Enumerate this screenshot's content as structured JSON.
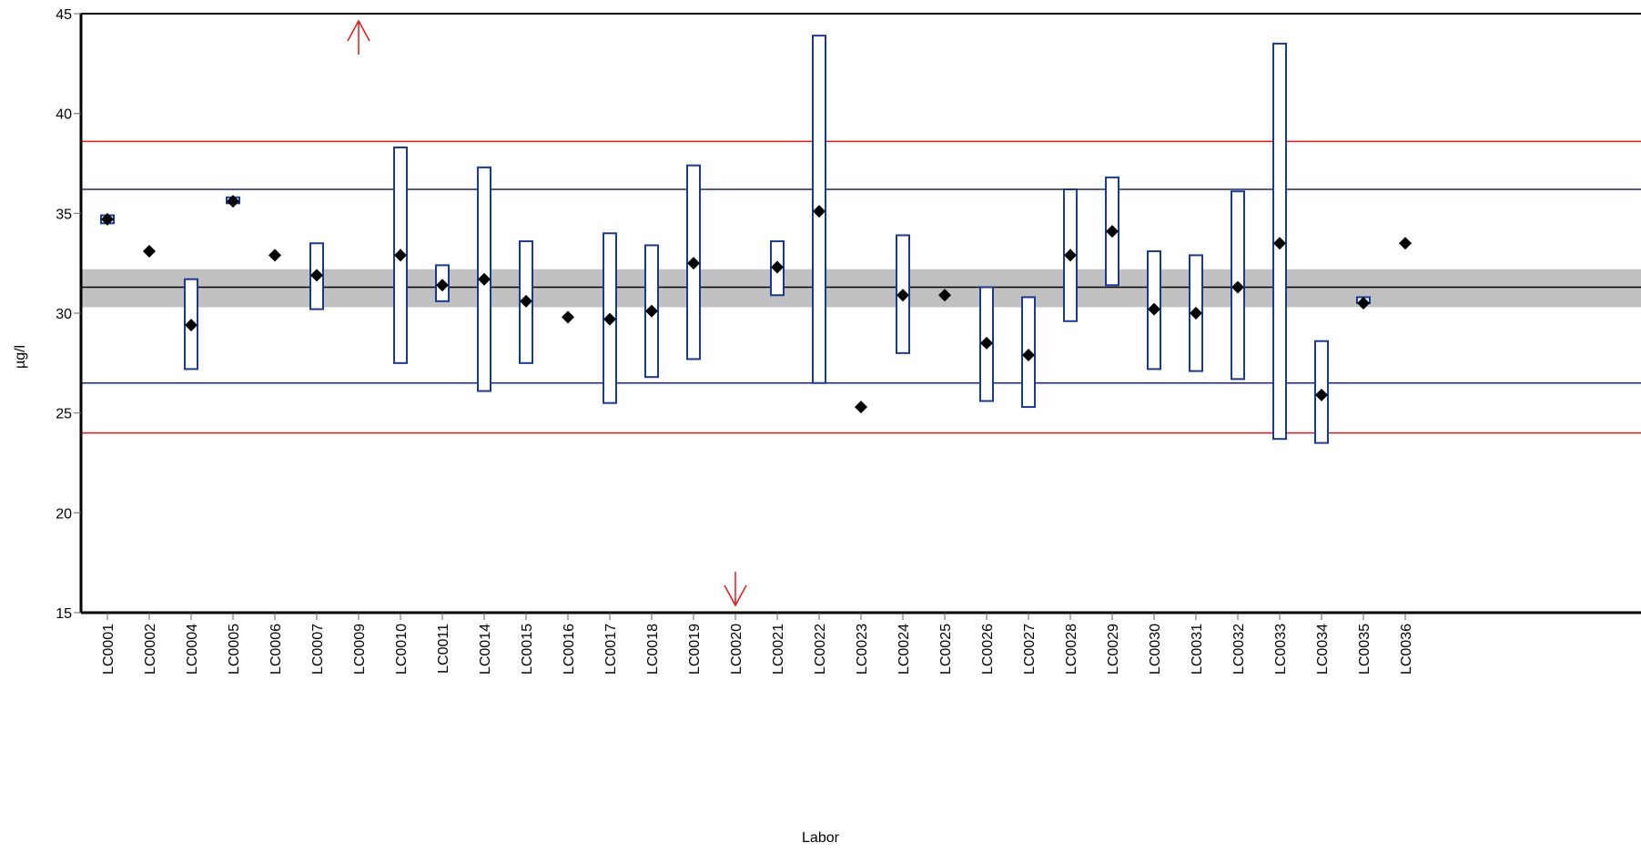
{
  "chart_data": {
    "type": "scatter",
    "title": "",
    "xlabel": "Labor",
    "ylabel": "µg/l",
    "ylim": [
      15,
      45
    ],
    "yticks": [
      15,
      20,
      25,
      30,
      35,
      40,
      45
    ],
    "grid": false,
    "categories": [
      "LC0001",
      "LC0002",
      "LC0004",
      "LC0005",
      "LC0006",
      "LC0007",
      "LC0009",
      "LC0010",
      "LC0011",
      "LC0014",
      "LC0015",
      "LC0016",
      "LC0017",
      "LC0018",
      "LC0019",
      "LC0020",
      "LC0021",
      "LC0022",
      "LC0023",
      "LC0024",
      "LC0025",
      "LC0026",
      "LC0027",
      "LC0028",
      "LC0029",
      "LC0030",
      "LC0031",
      "LC0032",
      "LC0033",
      "LC0034",
      "LC0035",
      "LC0036"
    ],
    "values": [
      34.7,
      33.1,
      29.4,
      35.6,
      32.9,
      31.9,
      null,
      32.9,
      31.4,
      31.7,
      30.6,
      29.8,
      29.7,
      30.1,
      32.5,
      null,
      32.3,
      35.1,
      25.3,
      30.9,
      30.9,
      28.5,
      27.9,
      32.9,
      34.1,
      30.2,
      30.0,
      31.3,
      33.5,
      25.9,
      30.5,
      33.5
    ],
    "uncertainty": [
      [
        34.5,
        34.9
      ],
      null,
      [
        27.2,
        31.7
      ],
      [
        35.5,
        35.8
      ],
      null,
      [
        30.2,
        33.5
      ],
      null,
      [
        27.5,
        38.3
      ],
      [
        30.6,
        32.4
      ],
      [
        26.1,
        37.3
      ],
      [
        27.5,
        33.6
      ],
      null,
      [
        25.5,
        34.0
      ],
      [
        26.8,
        33.4
      ],
      [
        27.7,
        37.4
      ],
      null,
      [
        30.9,
        33.6
      ],
      [
        26.5,
        43.9
      ],
      null,
      [
        28.0,
        33.9
      ],
      null,
      [
        25.6,
        31.3
      ],
      [
        25.3,
        30.8
      ],
      [
        29.6,
        36.2
      ],
      [
        31.4,
        36.8
      ],
      [
        27.2,
        33.1
      ],
      [
        27.1,
        32.9
      ],
      [
        26.7,
        36.1
      ],
      [
        23.7,
        43.5
      ],
      [
        23.5,
        28.6
      ],
      [
        30.5,
        30.8
      ],
      null
    ],
    "out_of_range": [
      {
        "category": "LC0009",
        "direction": "above"
      },
      {
        "category": "LC0020",
        "direction": "below"
      }
    ],
    "reference_lines": {
      "assigned_value": 31.3,
      "assigned_value_band": [
        30.3,
        32.2
      ],
      "tolerance_inner": [
        26.5,
        36.2
      ],
      "tolerance_outer": [
        24.0,
        38.6
      ]
    },
    "colors": {
      "marker": "#000000",
      "uncertainty_box": "#1a3a8f",
      "inner_limit": "#1a237e",
      "outer_limit": "#e11919",
      "band": "#c0c0c0",
      "center": "#000000",
      "arrow": "#e11919"
    }
  }
}
